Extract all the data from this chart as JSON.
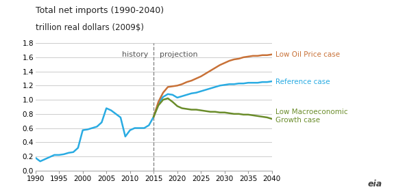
{
  "title": "Total net imports (1990-2040)",
  "subtitle": "trillion real dollars (2009$)",
  "title_fontsize": 9,
  "subtitle_fontsize": 8.5,
  "xlim": [
    1990,
    2040
  ],
  "ylim": [
    0.0,
    1.8
  ],
  "yticks": [
    0.0,
    0.2,
    0.4,
    0.6,
    0.8,
    1.0,
    1.2,
    1.4,
    1.6,
    1.8
  ],
  "xticks": [
    1990,
    1995,
    2000,
    2005,
    2010,
    2015,
    2020,
    2025,
    2030,
    2035,
    2040
  ],
  "divider_x": 2015,
  "history_label": "history",
  "projection_label": "projection",
  "bg_color": "#ffffff",
  "grid_color": "#cccccc",
  "reference_color": "#29abe2",
  "low_oil_color": "#c87137",
  "low_macro_color": "#6a8c2a",
  "label_reference": "Reference case",
  "label_low_oil": "Low Oil Price case",
  "label_low_macro": "Low Macroeconomic\nGrowth case",
  "eia_text": "eia",
  "reference_years": [
    1990,
    1991,
    1992,
    1993,
    1994,
    1995,
    1996,
    1997,
    1998,
    1999,
    2000,
    2001,
    2002,
    2003,
    2004,
    2005,
    2006,
    2007,
    2008,
    2009,
    2010,
    2011,
    2012,
    2013,
    2014,
    2015,
    2016,
    2017,
    2018,
    2019,
    2020,
    2021,
    2022,
    2023,
    2024,
    2025,
    2026,
    2027,
    2028,
    2029,
    2030,
    2031,
    2032,
    2033,
    2034,
    2035,
    2036,
    2037,
    2038,
    2039,
    2040
  ],
  "reference_values": [
    0.18,
    0.13,
    0.16,
    0.19,
    0.22,
    0.22,
    0.23,
    0.25,
    0.26,
    0.32,
    0.57,
    0.58,
    0.6,
    0.62,
    0.68,
    0.88,
    0.85,
    0.8,
    0.75,
    0.48,
    0.57,
    0.6,
    0.6,
    0.6,
    0.64,
    0.76,
    0.95,
    1.04,
    1.08,
    1.07,
    1.03,
    1.05,
    1.07,
    1.09,
    1.1,
    1.12,
    1.14,
    1.16,
    1.18,
    1.2,
    1.21,
    1.22,
    1.22,
    1.23,
    1.23,
    1.24,
    1.24,
    1.24,
    1.25,
    1.25,
    1.26
  ],
  "low_oil_years": [
    2015,
    2016,
    2017,
    2018,
    2019,
    2020,
    2021,
    2022,
    2023,
    2024,
    2025,
    2026,
    2027,
    2028,
    2029,
    2030,
    2031,
    2032,
    2033,
    2034,
    2035,
    2036,
    2037,
    2038,
    2039,
    2040
  ],
  "low_oil_values": [
    0.76,
    0.97,
    1.1,
    1.18,
    1.19,
    1.2,
    1.22,
    1.25,
    1.27,
    1.3,
    1.33,
    1.37,
    1.41,
    1.45,
    1.49,
    1.52,
    1.55,
    1.57,
    1.58,
    1.6,
    1.61,
    1.62,
    1.62,
    1.63,
    1.63,
    1.64
  ],
  "low_macro_years": [
    2015,
    2016,
    2017,
    2018,
    2019,
    2020,
    2021,
    2022,
    2023,
    2024,
    2025,
    2026,
    2027,
    2028,
    2029,
    2030,
    2031,
    2032,
    2033,
    2034,
    2035,
    2036,
    2037,
    2038,
    2039,
    2040
  ],
  "low_macro_values": [
    0.76,
    0.92,
    1.0,
    1.02,
    0.97,
    0.91,
    0.88,
    0.87,
    0.86,
    0.86,
    0.85,
    0.84,
    0.83,
    0.83,
    0.82,
    0.82,
    0.81,
    0.8,
    0.8,
    0.79,
    0.79,
    0.78,
    0.77,
    0.76,
    0.75,
    0.73
  ]
}
